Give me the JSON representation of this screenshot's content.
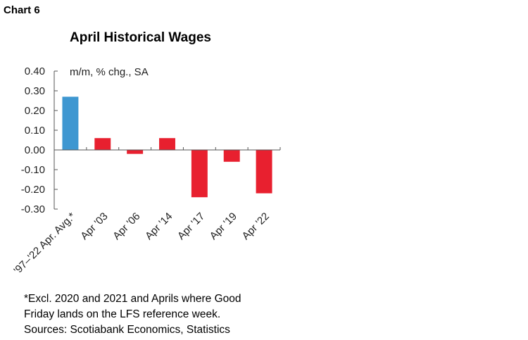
{
  "header": {
    "chart_label": "Chart 6"
  },
  "chart_data": {
    "type": "bar",
    "title": "April Historical Wages",
    "unit_label": "m/m, % chg., SA",
    "categories": [
      "'97–'22 Apr. Avg.*",
      "Apr '03",
      "Apr '06",
      "Apr '14",
      "Apr '17",
      "Apr '19",
      "Apr '22"
    ],
    "values": [
      0.27,
      0.06,
      -0.02,
      0.06,
      -0.24,
      -0.06,
      -0.22
    ],
    "bar_colors": [
      "#3e97d1",
      "#e8202f",
      "#e8202f",
      "#e8202f",
      "#e8202f",
      "#e8202f",
      "#e8202f"
    ],
    "ylim": [
      -0.3,
      0.4
    ],
    "yticks": [
      0.4,
      0.3,
      0.2,
      0.1,
      0.0,
      -0.1,
      -0.2,
      -0.3
    ],
    "ytick_labels": [
      "0.40",
      "0.30",
      "0.20",
      "0.10",
      "0.00",
      "-0.10",
      "-0.20",
      "-0.30"
    ],
    "grid": false,
    "legend": "none"
  },
  "footnote": {
    "lines": [
      "*Excl. 2020 and 2021 and Aprils where Good",
      "Friday lands on the LFS reference week.",
      "Sources: Scotiabank Economics, Statistics"
    ]
  }
}
